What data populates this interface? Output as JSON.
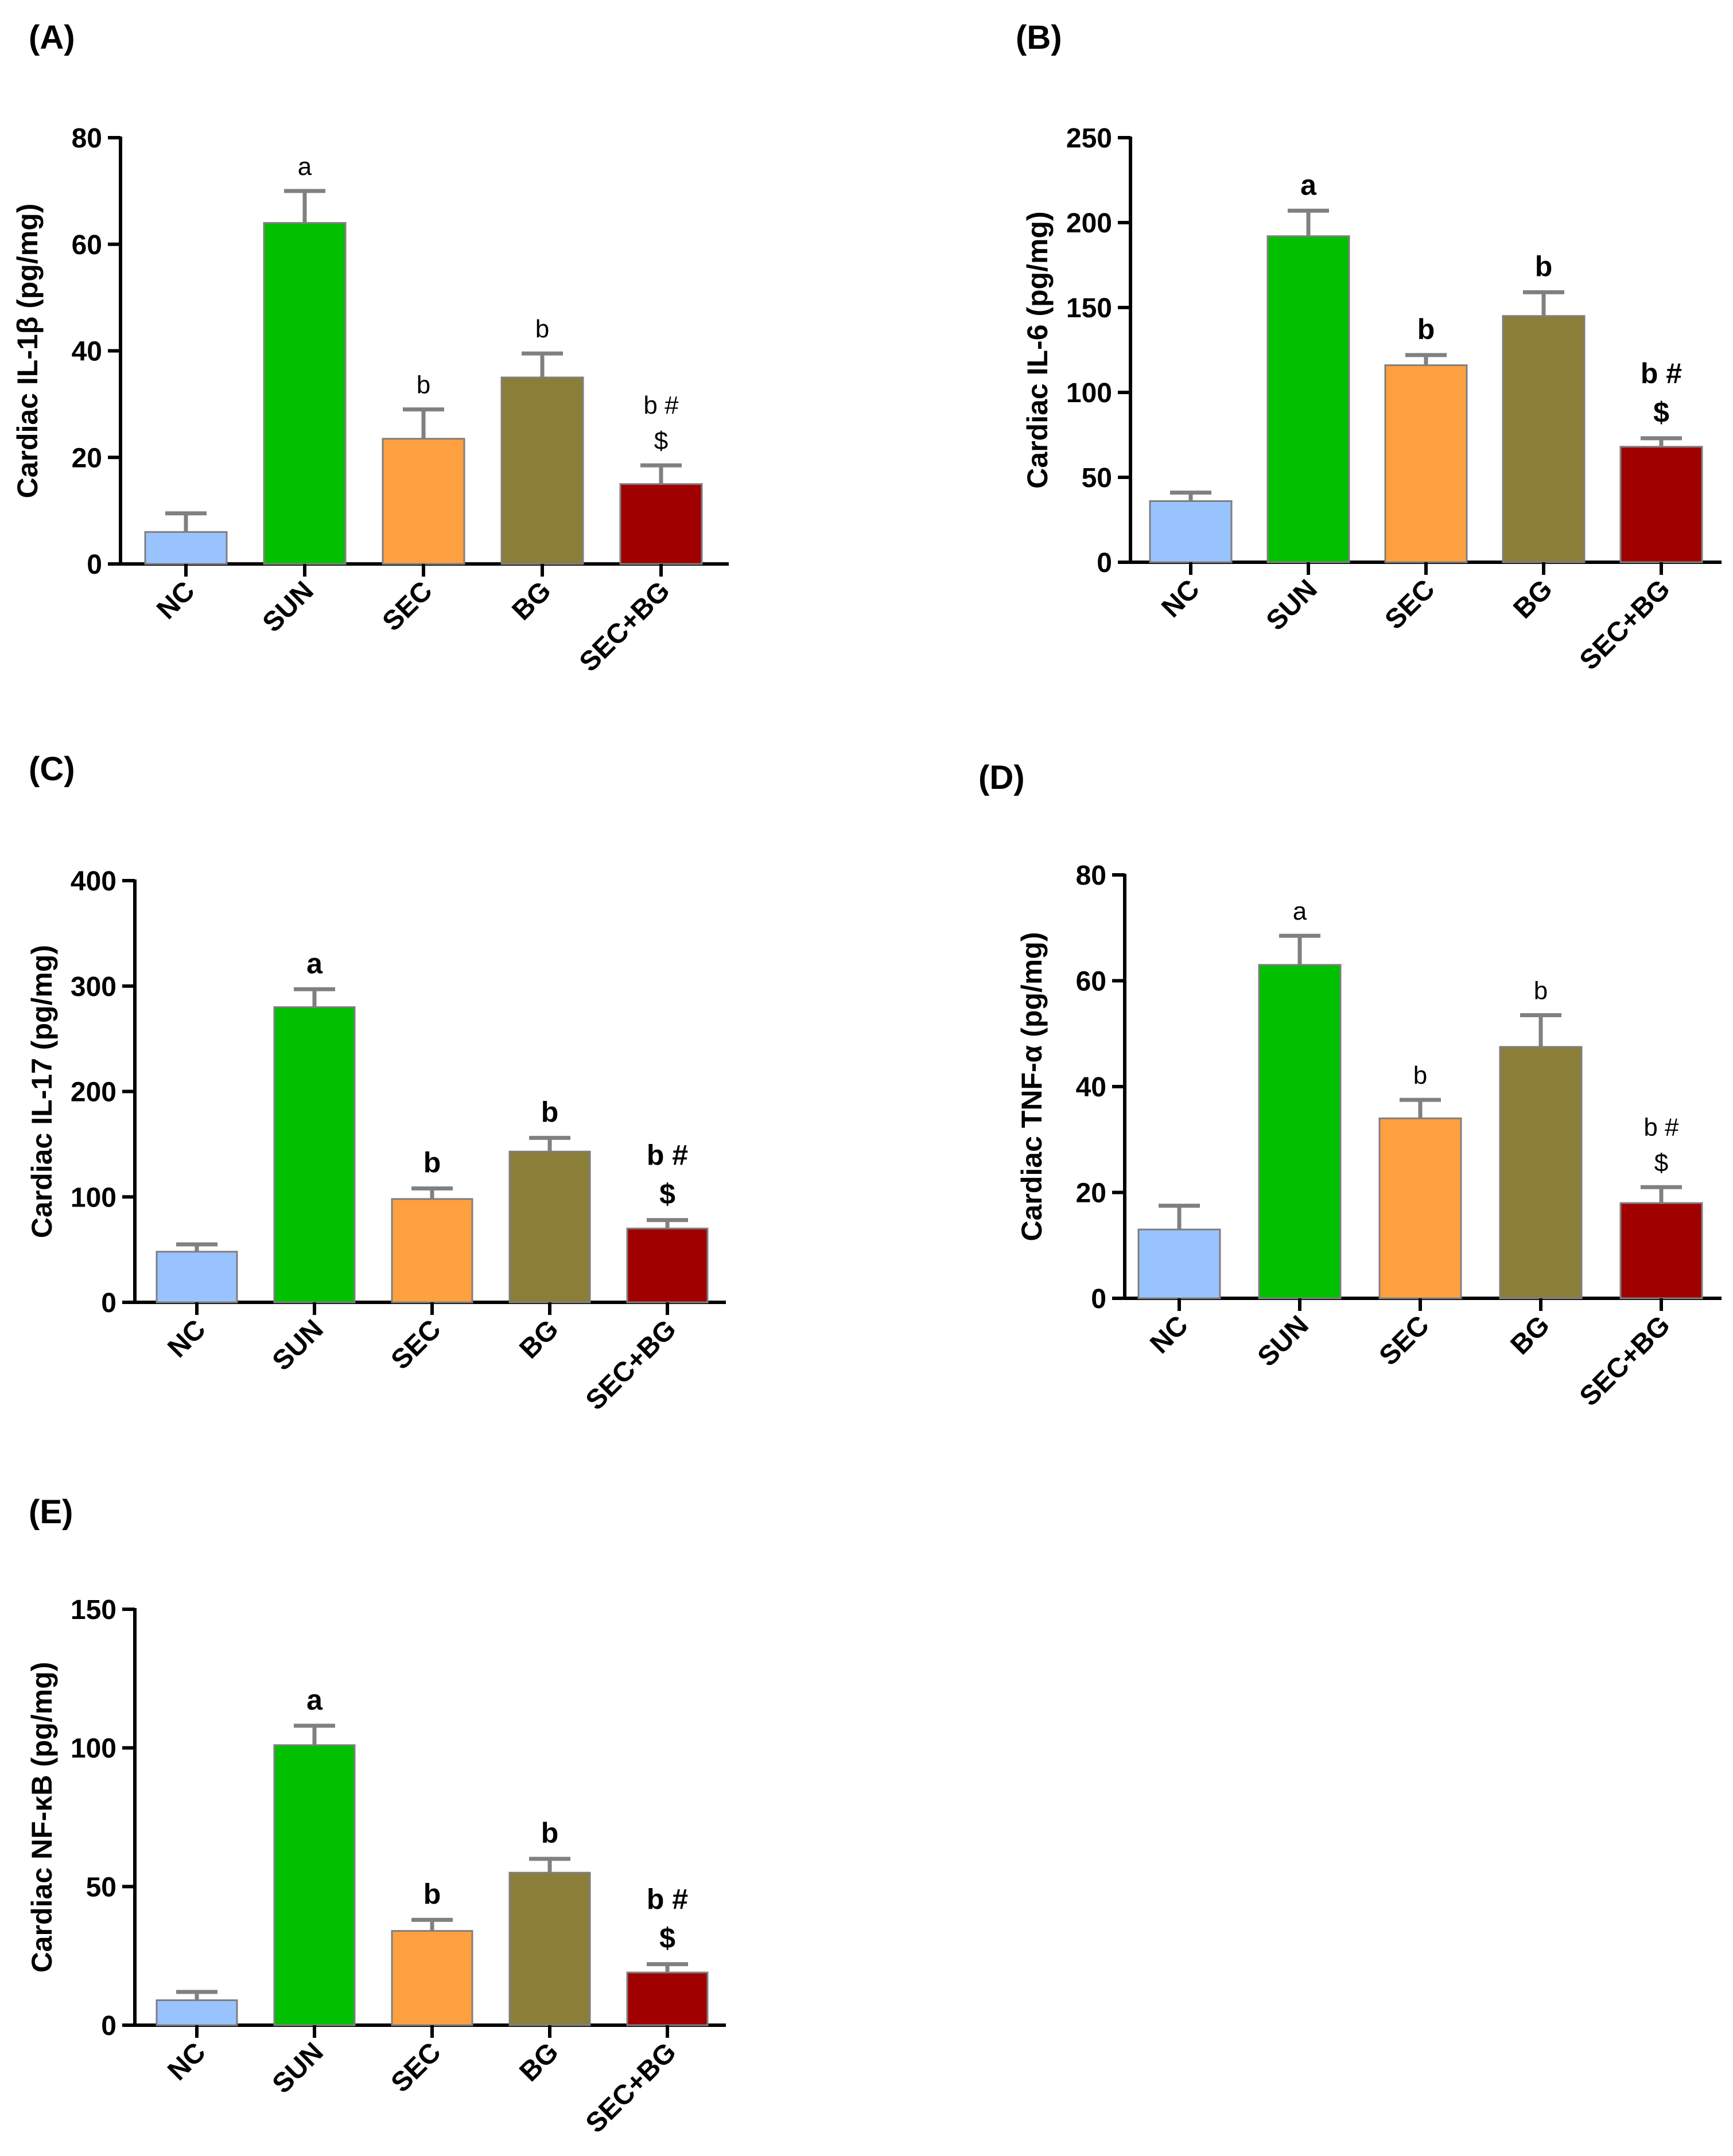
{
  "figure": {
    "background": "#ffffff",
    "axis_color": "#000000",
    "errorbar_color": "#808080",
    "bar_outline": "#7f7f7f"
  },
  "chart_data": [
    {
      "id": "panel-a",
      "panel_label": "(A)",
      "type": "bar",
      "ylabel": "Cardiac IL-1β (pg/mg)",
      "ylim": [
        0,
        80
      ],
      "yticks": [
        0,
        20,
        40,
        60,
        80
      ],
      "categories": [
        "NC",
        "SUN",
        "SEC",
        "BG",
        "SEC+BG"
      ],
      "values": [
        6,
        64,
        23.5,
        35,
        15
      ],
      "errors": [
        3.5,
        6,
        5.5,
        4.5,
        3.5
      ],
      "colors": [
        "#99c3ff",
        "#00c000",
        "#ffa040",
        "#8b7e38",
        "#a00000"
      ],
      "annotations": [
        [],
        [
          "a"
        ],
        [
          "b"
        ],
        [
          "b"
        ],
        [
          "b #",
          "$"
        ]
      ],
      "annotation_bold": false
    },
    {
      "id": "panel-b",
      "panel_label": "(B)",
      "type": "bar",
      "ylabel": "Cardiac IL-6 (pg/mg)",
      "ylim": [
        0,
        250
      ],
      "yticks": [
        0,
        50,
        100,
        150,
        200,
        250
      ],
      "categories": [
        "NC",
        "SUN",
        "SEC",
        "BG",
        "SEC+BG"
      ],
      "values": [
        36,
        192,
        116,
        145,
        68
      ],
      "errors": [
        5,
        15,
        6,
        14,
        5
      ],
      "colors": [
        "#99c3ff",
        "#00c000",
        "#ffa040",
        "#8b7e38",
        "#a00000"
      ],
      "annotations": [
        [],
        [
          "a"
        ],
        [
          "b"
        ],
        [
          "b"
        ],
        [
          "b #",
          "$"
        ]
      ],
      "annotation_bold": true
    },
    {
      "id": "panel-c",
      "panel_label": "(C)",
      "type": "bar",
      "ylabel": "Cardiac IL-17 (pg/mg)",
      "ylim": [
        0,
        400
      ],
      "yticks": [
        0,
        100,
        200,
        300,
        400
      ],
      "categories": [
        "NC",
        "SUN",
        "SEC",
        "BG",
        "SEC+BG"
      ],
      "values": [
        48,
        280,
        98,
        143,
        70
      ],
      "errors": [
        7,
        17,
        10,
        13,
        8
      ],
      "colors": [
        "#99c3ff",
        "#00c000",
        "#ffa040",
        "#8b7e38",
        "#a00000"
      ],
      "annotations": [
        [],
        [
          "a"
        ],
        [
          "b"
        ],
        [
          "b"
        ],
        [
          "b #",
          "$"
        ]
      ],
      "annotation_bold": true
    },
    {
      "id": "panel-d",
      "panel_label": "(D)",
      "type": "bar",
      "ylabel": "Cardiac TNF-α (pg/mg)",
      "ylim": [
        0,
        80
      ],
      "yticks": [
        0,
        20,
        40,
        60,
        80
      ],
      "categories": [
        "NC",
        "SUN",
        "SEC",
        "BG",
        "SEC+BG"
      ],
      "values": [
        13,
        63,
        34,
        47.5,
        18
      ],
      "errors": [
        4.5,
        5.5,
        3.5,
        6,
        3
      ],
      "colors": [
        "#99c3ff",
        "#00c000",
        "#ffa040",
        "#8b7e38",
        "#a00000"
      ],
      "annotations": [
        [],
        [
          "a"
        ],
        [
          "b"
        ],
        [
          "b"
        ],
        [
          "b #",
          "$"
        ]
      ],
      "annotation_bold": false
    },
    {
      "id": "panel-e",
      "panel_label": "(E)",
      "type": "bar",
      "ylabel": "Cardiac NF-κB (pg/mg)",
      "ylim": [
        0,
        150
      ],
      "yticks": [
        0,
        50,
        100,
        150
      ],
      "categories": [
        "NC",
        "SUN",
        "SEC",
        "BG",
        "SEC+BG"
      ],
      "values": [
        9,
        101,
        34,
        55,
        19
      ],
      "errors": [
        3,
        7,
        4,
        5,
        3
      ],
      "colors": [
        "#99c3ff",
        "#00c000",
        "#ffa040",
        "#8b7e38",
        "#a00000"
      ],
      "annotations": [
        [],
        [
          "a"
        ],
        [
          "b"
        ],
        [
          "b"
        ],
        [
          "b #",
          "$"
        ]
      ],
      "annotation_bold": true
    }
  ]
}
